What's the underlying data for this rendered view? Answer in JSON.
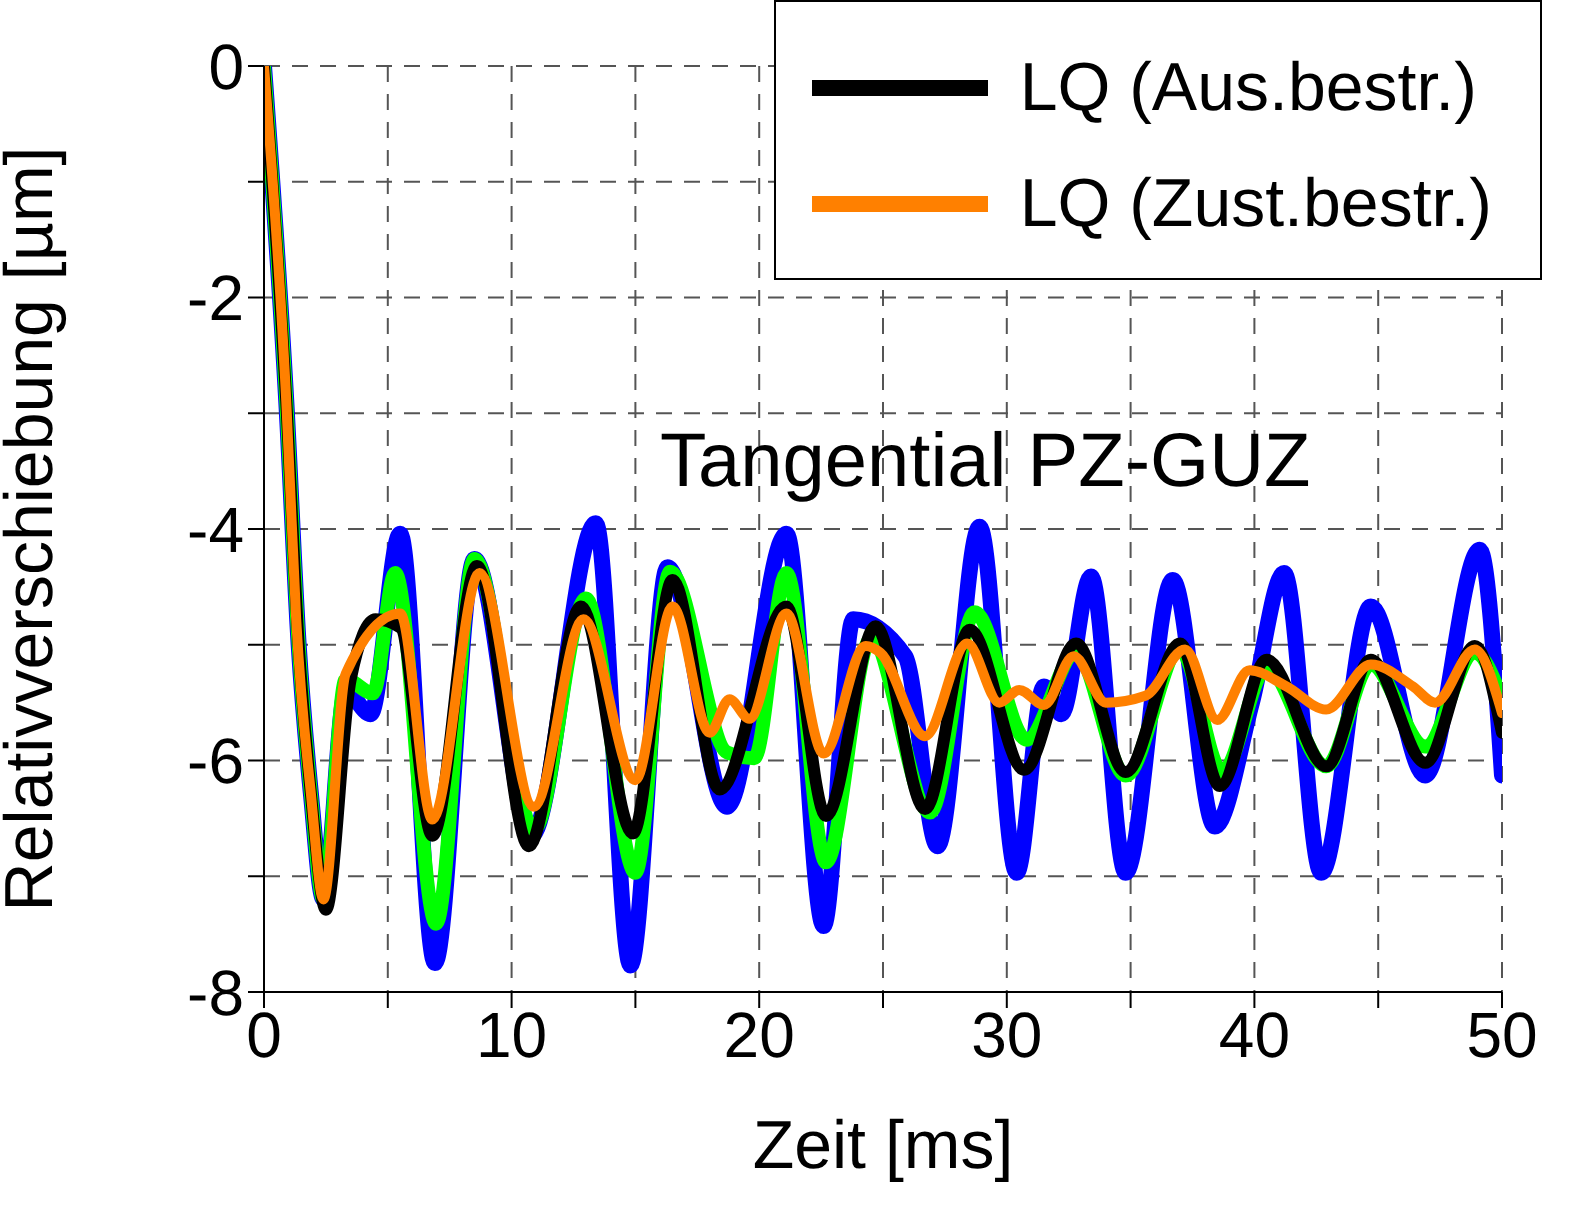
{
  "chart_data": {
    "type": "line",
    "xlabel": "Zeit [ms]",
    "ylabel": "Relativverschiebung [µm]",
    "annotations": [
      "Tangential PZ-GUZ"
    ],
    "xlim": [
      0,
      50
    ],
    "ylim": [
      -8,
      0
    ],
    "xticks": [
      0,
      {
        "value": 5,
        "label": null
      },
      10,
      {
        "value": 15,
        "label": null
      },
      20,
      {
        "value": 25,
        "label": null
      },
      30,
      {
        "value": 35,
        "label": null
      },
      40,
      {
        "value": 45,
        "label": null
      },
      50
    ],
    "yticks": [
      -8,
      {
        "value": -7,
        "label": null
      },
      -6,
      {
        "value": -5,
        "label": null
      },
      -4,
      {
        "value": -3,
        "label": null
      },
      -2,
      {
        "value": -1,
        "label": null
      },
      0
    ],
    "grid": true,
    "legend": "top right",
    "line_style": "solid",
    "marker": "none",
    "series": [
      {
        "color": "#0000ff",
        "x": [
          0,
          0.9,
          1.4,
          1.9,
          2.4,
          3.3,
          4.3,
          5.5,
          6.9,
          8.5,
          10.8,
          13.4,
          14.8,
          16.3,
          18.7,
          21.1,
          22.6,
          23.8,
          25.9,
          27.2,
          28.9,
          30.4,
          31.5,
          32.2,
          33.4,
          34.8,
          36.7,
          38.4,
          39.9,
          41.2,
          42.7,
          44.7,
          46.9,
          49.1,
          50
        ],
        "values": [
          0,
          -2.9,
          -5,
          -6.3,
          -7.2,
          -5.4,
          -5.6,
          -4.04,
          -7.75,
          -4.26,
          -6.65,
          -3.95,
          -7.77,
          -4.33,
          -6.4,
          -4.04,
          -7.43,
          -4.78,
          -5.1,
          -6.74,
          -3.98,
          -6.97,
          -5.36,
          -5.6,
          -4.41,
          -6.97,
          -4.44,
          -6.57,
          -5.5,
          -4.38,
          -6.97,
          -4.67,
          -6.13,
          -4.18,
          -6.13
        ]
      },
      {
        "color": "#00ff00",
        "x": [
          0,
          0.9,
          1.4,
          1.9,
          2.4,
          3.3,
          4.4,
          5.3,
          6.95,
          8.5,
          10.9,
          13,
          15,
          16.4,
          18.7,
          19.8,
          21.1,
          22.7,
          24.5,
          26.9,
          28.7,
          30.8,
          32.8,
          34.8,
          37,
          38.7,
          40.5,
          42.9,
          44.7,
          46.9,
          48.9,
          50
        ],
        "values": [
          0,
          -2.9,
          -5,
          -6.3,
          -7.2,
          -5.3,
          -5.42,
          -4.38,
          -7.41,
          -4.26,
          -6.6,
          -4.6,
          -6.97,
          -4.37,
          -5.93,
          -5.98,
          -4.38,
          -6.88,
          -4.95,
          -6.45,
          -4.72,
          -5.82,
          -5.07,
          -6.13,
          -5.04,
          -6.1,
          -5.2,
          -6.05,
          -5.17,
          -5.88,
          -5.07,
          -5.47
        ]
      },
      {
        "name": "LQ (Aus.bestr.)",
        "color": "#000000",
        "x": [
          0,
          0.9,
          1.4,
          1.9,
          2.5,
          3.5,
          4.5,
          5.5,
          6.8,
          8.6,
          10.7,
          12.8,
          14.9,
          16.5,
          18.4,
          21.1,
          22.7,
          24.7,
          26.7,
          28.5,
          30.7,
          32.8,
          34.8,
          37,
          38.6,
          40.5,
          42.9,
          44.7,
          46.9,
          48.9,
          50
        ],
        "values": [
          0,
          -2.9,
          -5,
          -6.3,
          -7.29,
          -5.3,
          -4.78,
          -4.85,
          -6.65,
          -4.32,
          -6.74,
          -4.67,
          -6.63,
          -4.44,
          -6.25,
          -4.67,
          -6.48,
          -4.84,
          -6.42,
          -4.87,
          -6.08,
          -4.99,
          -6.1,
          -4.99,
          -6.22,
          -5.13,
          -6.05,
          -5.13,
          -6.02,
          -5.01,
          -5.76
        ]
      },
      {
        "name": "LQ (Zust.bestr.)",
        "color": "#ff8000",
        "x": [
          0,
          0.9,
          1.3,
          1.9,
          2.4,
          3.3,
          5.5,
          6.8,
          8.7,
          10.9,
          12.9,
          15,
          16.5,
          18,
          18.8,
          19.6,
          21.1,
          22.6,
          24.3,
          24.9,
          26.7,
          28.4,
          29.7,
          30.5,
          31.5,
          32.7,
          34,
          35.6,
          37.2,
          38.5,
          39.8,
          41.3,
          42.9,
          44.7,
          46.4,
          47.3,
          48.9,
          50
        ],
        "values": [
          0,
          -2.9,
          -4.78,
          -6.3,
          -7.2,
          -5.25,
          -4.73,
          -6.51,
          -4.38,
          -6.4,
          -4.78,
          -6.17,
          -4.67,
          -5.76,
          -5.47,
          -5.64,
          -4.73,
          -5.94,
          -5.01,
          -5.07,
          -5.79,
          -4.99,
          -5.5,
          -5.39,
          -5.52,
          -5.1,
          -5.5,
          -5.44,
          -5.04,
          -5.65,
          -5.22,
          -5.36,
          -5.56,
          -5.17,
          -5.36,
          -5.5,
          -5.04,
          -5.59
        ]
      }
    ]
  }
}
